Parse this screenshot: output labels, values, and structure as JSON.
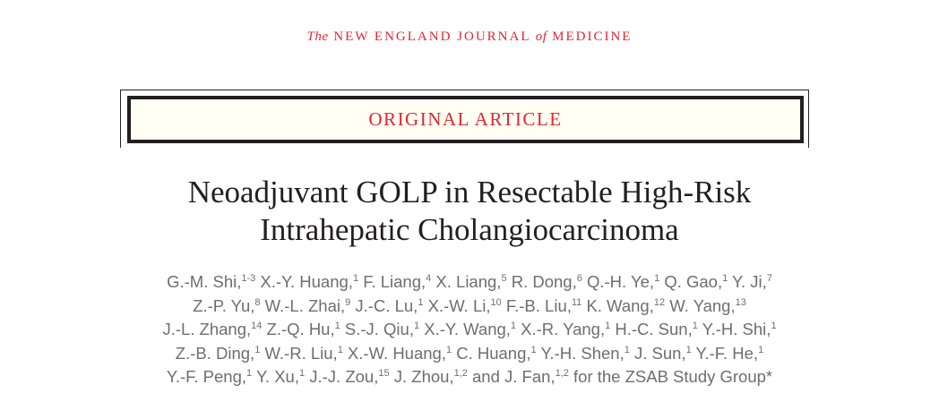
{
  "journal": {
    "prefix": "The",
    "name_a": "NEW ENGLAND JOURNAL",
    "of": "of",
    "name_b": "MEDICINE"
  },
  "badge": "ORIGINAL ARTICLE",
  "title": {
    "line1": "Neoadjuvant GOLP in Resectable High-Risk",
    "line2": "Intrahepatic Cholangiocarcinoma"
  },
  "colors": {
    "accent": "#e3262f",
    "text": "#231f20",
    "authors": "#6d6e71",
    "badge_bg": "#fffff4"
  },
  "authors": [
    [
      [
        "G.-M. Shi,",
        "1-3"
      ],
      [
        "X.-Y. Huang,",
        "1"
      ],
      [
        "F. Liang,",
        "4"
      ],
      [
        "X. Liang,",
        "5"
      ],
      [
        "R. Dong,",
        "6"
      ],
      [
        "Q.-H. Ye,",
        "1"
      ],
      [
        "Q. Gao,",
        "1"
      ],
      [
        "Y. Ji,",
        "7"
      ]
    ],
    [
      [
        "Z.-P. Yu,",
        "8"
      ],
      [
        "W.-L. Zhai,",
        "9"
      ],
      [
        "J.-C. Lu,",
        "1"
      ],
      [
        "X.-W. Li,",
        "10"
      ],
      [
        "F.-B. Liu,",
        "11"
      ],
      [
        "K. Wang,",
        "12"
      ],
      [
        "W. Yang,",
        "13"
      ]
    ],
    [
      [
        "J.-L. Zhang,",
        "14"
      ],
      [
        "Z.-Q. Hu,",
        "1"
      ],
      [
        "S.-J. Qiu,",
        "1"
      ],
      [
        "X.-Y. Wang,",
        "1"
      ],
      [
        "X.-R. Yang,",
        "1"
      ],
      [
        "H.-C. Sun,",
        "1"
      ],
      [
        "Y.-H. Shi,",
        "1"
      ]
    ],
    [
      [
        "Z.-B. Ding,",
        "1"
      ],
      [
        "W.-R. Liu,",
        "1"
      ],
      [
        "X.-W. Huang,",
        "1"
      ],
      [
        "C. Huang,",
        "1"
      ],
      [
        "Y.-H. Shen,",
        "1"
      ],
      [
        "J. Sun,",
        "1"
      ],
      [
        "Y.-F. He,",
        "1"
      ]
    ],
    [
      [
        "Y.-F. Peng,",
        "1"
      ],
      [
        "Y. Xu,",
        "1"
      ],
      [
        "J.-J. Zou,",
        "15"
      ],
      [
        "J. Zhou,",
        "1,2"
      ],
      [
        "and J. Fan,",
        "1,2"
      ],
      [
        "for the ZSAB Study Group*",
        ""
      ]
    ]
  ]
}
